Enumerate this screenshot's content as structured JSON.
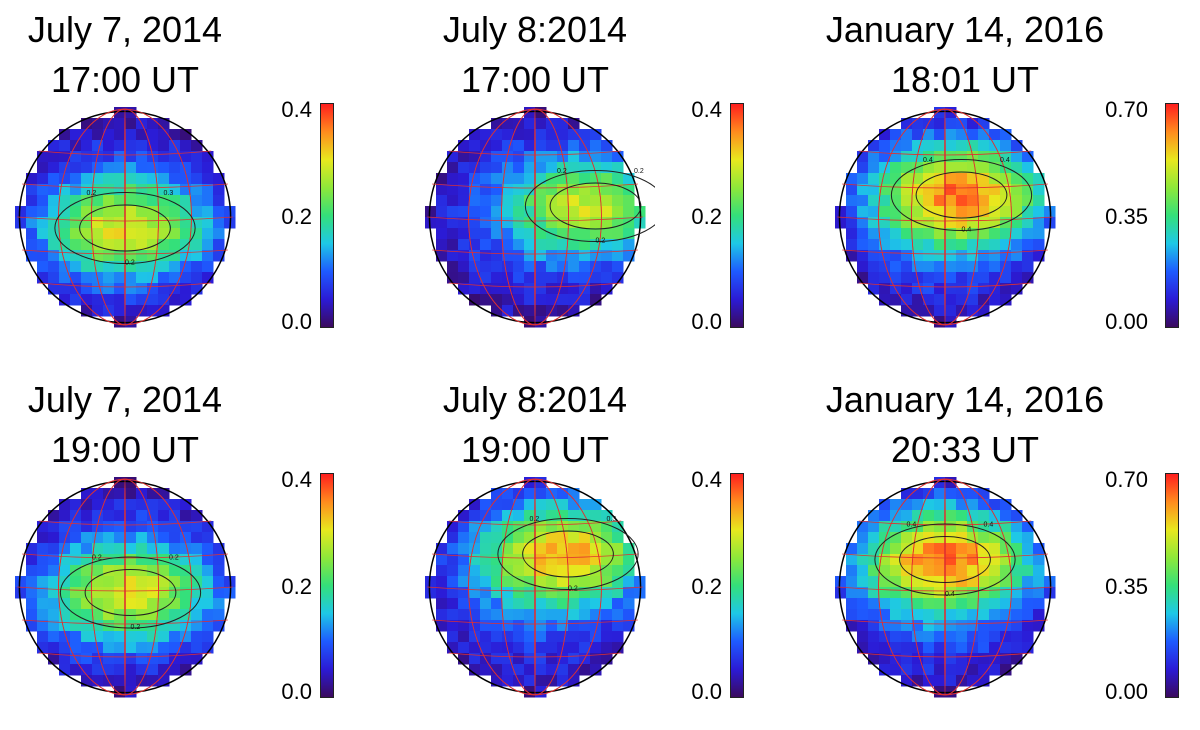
{
  "colors": {
    "colormap": [
      "#3a0a5e",
      "#2b1bd6",
      "#1e5bff",
      "#1ec8e6",
      "#34e07a",
      "#8ee83a",
      "#e8e81e",
      "#ff8c1e",
      "#ff1e1e"
    ],
    "grid": "#e03030",
    "contour": "#222222"
  },
  "chart_data": [
    {
      "type": "heatmap",
      "title_line1": "July 7, 2014",
      "title_line2": "17:00 UT",
      "colorbar": {
        "ticks": [
          "0.4",
          "0.2",
          "0.0"
        ],
        "range": [
          0.0,
          0.4
        ]
      },
      "hotspot": {
        "lon": 0.0,
        "lat": -0.1,
        "peak": 0.3
      },
      "contours": [
        "0.2",
        "0.2",
        "0.3"
      ]
    },
    {
      "type": "heatmap",
      "title_line1": "July 8:2014",
      "title_line2": "17:00 UT",
      "colorbar": {
        "ticks": [
          "0.4",
          "0.2",
          "0.0"
        ],
        "range": [
          0.0,
          0.4
        ]
      },
      "hotspot": {
        "lon": 0.55,
        "lat": 0.1,
        "peak": 0.3
      },
      "contours": [
        "0.2",
        "0.2",
        "0.2"
      ]
    },
    {
      "type": "heatmap",
      "title_line1": "January 14, 2016",
      "title_line2": "18:01 UT",
      "colorbar": {
        "ticks": [
          "0.70",
          "0.35",
          "0.00"
        ],
        "range": [
          0.0,
          0.7
        ]
      },
      "hotspot": {
        "lon": 0.15,
        "lat": 0.2,
        "peak": 0.65
      },
      "contours": [
        "0.4",
        "0.4",
        "0.4"
      ]
    },
    {
      "type": "heatmap",
      "title_line1": "July 7, 2014",
      "title_line2": "19:00 UT",
      "colorbar": {
        "ticks": [
          "0.4",
          "0.2",
          "0.0"
        ],
        "range": [
          0.0,
          0.4
        ]
      },
      "hotspot": {
        "lon": 0.05,
        "lat": -0.05,
        "peak": 0.3
      },
      "contours": [
        "0.2",
        "0.2",
        "0.2"
      ]
    },
    {
      "type": "heatmap",
      "title_line1": "July 8:2014",
      "title_line2": "19:00 UT",
      "colorbar": {
        "ticks": [
          "0.4",
          "0.2",
          "0.0"
        ],
        "range": [
          0.0,
          0.4
        ]
      },
      "hotspot": {
        "lon": 0.3,
        "lat": 0.3,
        "peak": 0.35
      },
      "contours": [
        "0.2",
        "0.2",
        "0.3"
      ]
    },
    {
      "type": "heatmap",
      "title_line1": "January 14, 2016",
      "title_line2": "20:33 UT",
      "colorbar": {
        "ticks": [
          "0.70",
          "0.35",
          "0.00"
        ],
        "range": [
          0.0,
          0.7
        ]
      },
      "hotspot": {
        "lon": 0.0,
        "lat": 0.25,
        "peak": 0.65
      },
      "contours": [
        "0.4",
        "0.4",
        "0.4"
      ]
    }
  ]
}
